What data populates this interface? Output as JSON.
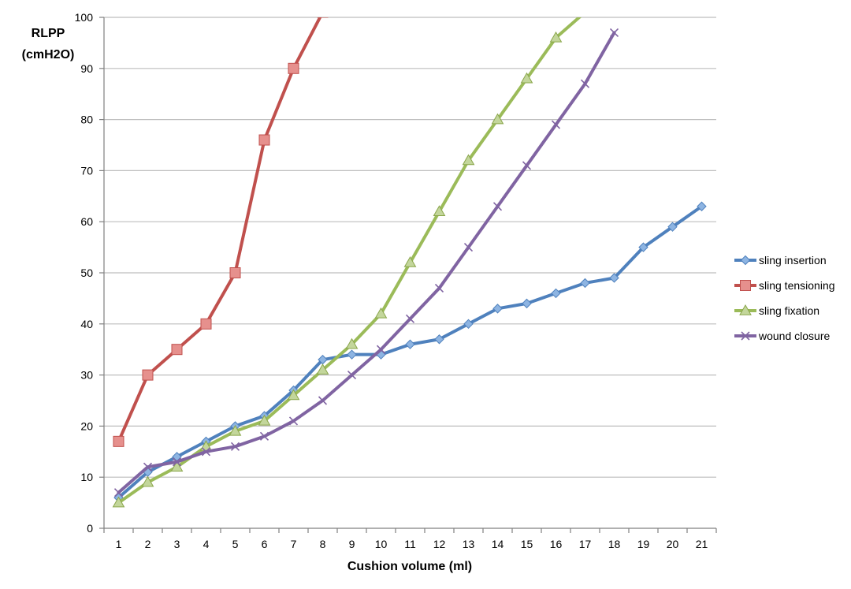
{
  "chart_data": {
    "type": "line",
    "xlabel": "Cushion volume (ml)",
    "ylabel_lines": [
      "RLPP",
      "(cmH2O)"
    ],
    "categories": [
      1,
      2,
      3,
      4,
      5,
      6,
      7,
      8,
      9,
      10,
      11,
      12,
      13,
      14,
      15,
      16,
      17,
      18,
      19,
      20,
      21
    ],
    "ylim": [
      0,
      100
    ],
    "yticks": [
      0,
      10,
      20,
      30,
      40,
      50,
      60,
      70,
      80,
      90,
      100
    ],
    "grid": "horizontal",
    "legend_position": "right",
    "series": [
      {
        "name": "sling insertion",
        "color": "#4F81BD",
        "marker": "diamond",
        "x": [
          1,
          2,
          3,
          4,
          5,
          6,
          7,
          8,
          9,
          10,
          11,
          12,
          13,
          14,
          15,
          16,
          17,
          18,
          19,
          20,
          21
        ],
        "values": [
          6,
          11,
          14,
          17,
          20,
          22,
          27,
          33,
          34,
          34,
          36,
          37,
          40,
          43,
          44,
          46,
          48,
          49,
          55,
          59,
          63
        ]
      },
      {
        "name": "sling tensioning",
        "color": "#C0504D",
        "marker": "square",
        "x": [
          1,
          2,
          3,
          4,
          5,
          6,
          7,
          8
        ],
        "values": [
          17,
          30,
          35,
          40,
          50,
          76,
          90,
          101
        ]
      },
      {
        "name": "sling fixation",
        "color": "#9BBB59",
        "marker": "triangle",
        "x": [
          1,
          2,
          3,
          4,
          5,
          6,
          7,
          8,
          9,
          10,
          11,
          12,
          13,
          14,
          15,
          16,
          17
        ],
        "values": [
          5,
          9,
          12,
          16,
          19,
          21,
          26,
          31,
          36,
          42,
          52,
          62,
          72,
          80,
          88,
          96,
          101
        ]
      },
      {
        "name": "wound closure",
        "color": "#8064A2",
        "marker": "x",
        "x": [
          1,
          2,
          3,
          4,
          5,
          6,
          7,
          8,
          9,
          10,
          11,
          12,
          13,
          14,
          15,
          16,
          17,
          18
        ],
        "values": [
          7,
          12,
          13,
          15,
          16,
          18,
          21,
          25,
          30,
          35,
          41,
          47,
          55,
          63,
          71,
          79,
          87,
          97
        ]
      }
    ]
  }
}
